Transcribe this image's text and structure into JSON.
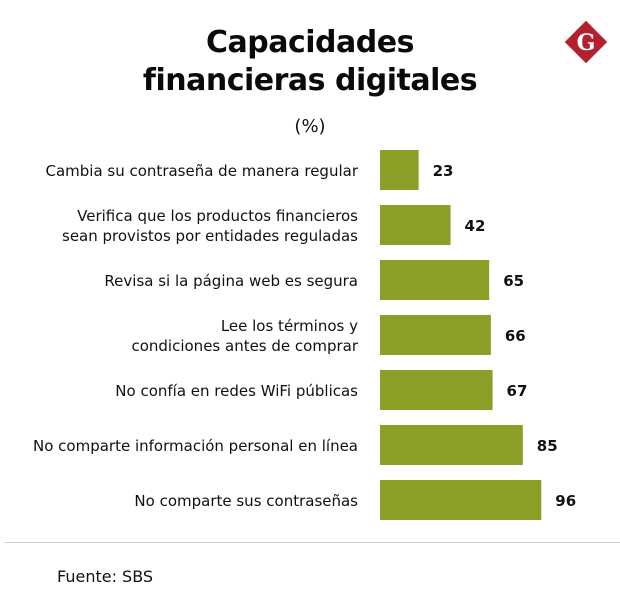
{
  "header": {
    "title_line1": "Capacidades",
    "title_line2": "financieras digitales",
    "subtitle": "(%)",
    "logo_letter": "G"
  },
  "colors": {
    "bar": "#8b9e25",
    "logo": "#b5202e"
  },
  "footer": {
    "source": "Fuente: SBS"
  },
  "chart_data": {
    "type": "bar",
    "orientation": "horizontal",
    "title": "Capacidades financieras digitales",
    "subtitle": "(%)",
    "xlabel": "",
    "ylabel": "",
    "grid": false,
    "legend": "none",
    "xlim": [
      0,
      100
    ],
    "categories": [
      [
        "Cambia su contraseña de manera regular"
      ],
      [
        "Verifica que los productos financieros",
        "sean provistos por entidades reguladas"
      ],
      [
        "Revisa si la página web es segura"
      ],
      [
        "Lee los términos y",
        "condiciones antes de comprar"
      ],
      [
        "No confía en redes WiFi públicas"
      ],
      [
        "No comparte información personal en línea"
      ],
      [
        "No comparte sus contraseñas"
      ]
    ],
    "values": [
      23,
      42,
      65,
      66,
      67,
      85,
      96
    ],
    "source": "Fuente: SBS"
  }
}
